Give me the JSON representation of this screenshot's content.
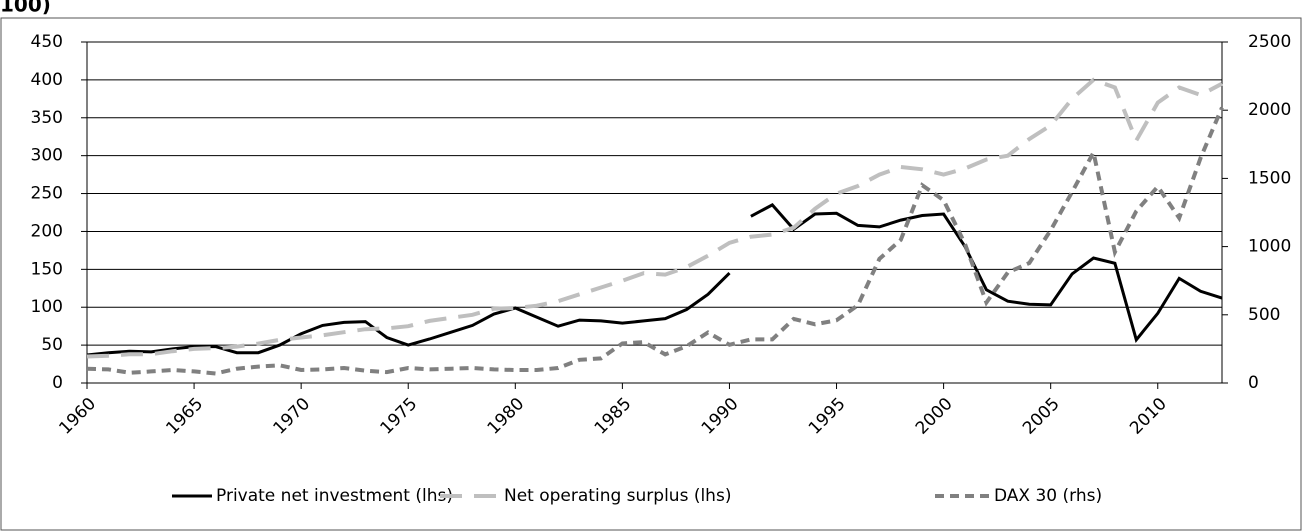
{
  "chart_data": {
    "type": "line",
    "title": "100)",
    "x": [
      1960,
      1961,
      1962,
      1963,
      1964,
      1965,
      1966,
      1967,
      1968,
      1969,
      1970,
      1971,
      1972,
      1973,
      1974,
      1975,
      1976,
      1977,
      1978,
      1979,
      1980,
      1981,
      1982,
      1983,
      1984,
      1985,
      1986,
      1987,
      1988,
      1989,
      1990,
      1991,
      1992,
      1993,
      1994,
      1995,
      1996,
      1997,
      1998,
      1999,
      2000,
      2001,
      2002,
      2003,
      2004,
      2005,
      2006,
      2007,
      2008,
      2009,
      2010,
      2011,
      2012,
      2013
    ],
    "series": [
      {
        "name": "Private net investment (lhs)",
        "color": "#000000",
        "dash": "none",
        "x": [
          1960,
          1961,
          1962,
          1963,
          1964,
          1965,
          1966,
          1967,
          1968,
          1969,
          1970,
          1971,
          1972,
          1973,
          1974,
          1975,
          1976,
          1977,
          1978,
          1979,
          1980,
          1981,
          1982,
          1983,
          1984,
          1985,
          1986,
          1987,
          1988,
          1989,
          1990,
          null,
          1991,
          1992,
          1993,
          1994,
          1995,
          1996,
          1997,
          1998,
          1999,
          2000,
          2001,
          2002,
          2003,
          2004,
          2005,
          2006,
          2007,
          2008,
          2009,
          2010,
          2011,
          2012,
          2013
        ],
        "values": [
          37,
          40,
          42,
          41,
          45,
          48,
          48,
          40,
          40,
          50,
          65,
          76,
          80,
          81,
          60,
          50,
          58,
          67,
          76,
          91,
          99,
          87,
          75,
          83,
          82,
          79,
          82,
          85,
          97,
          117,
          145,
          null,
          220,
          235,
          203,
          223,
          224,
          208,
          206,
          215,
          221,
          223,
          180,
          123,
          108,
          104,
          103,
          144,
          165,
          158,
          57,
          92,
          138,
          121,
          112
        ]
      },
      {
        "name": "Net operating surplus (lhs)",
        "color": "#bfbfbf",
        "dash": "22 12",
        "values": [
          35,
          36,
          38,
          38,
          42,
          45,
          46,
          48,
          52,
          57,
          60,
          63,
          67,
          71,
          72,
          75,
          82,
          86,
          90,
          98,
          99,
          102,
          108,
          117,
          126,
          135,
          145,
          143,
          153,
          168,
          185,
          193,
          196,
          205,
          230,
          250,
          260,
          275,
          285,
          282,
          275,
          283,
          295,
          300,
          322,
          340,
          375,
          400,
          390,
          320,
          370,
          390,
          380,
          395
        ]
      },
      {
        "name": "DAX 30 (rhs)",
        "color": "#808080",
        "dash": "9 6",
        "axis": "y2",
        "values": [
          105,
          100,
          75,
          85,
          95,
          85,
          70,
          105,
          120,
          130,
          95,
          100,
          110,
          90,
          80,
          110,
          100,
          105,
          110,
          100,
          95,
          95,
          110,
          170,
          180,
          290,
          300,
          210,
          270,
          370,
          280,
          320,
          320,
          470,
          430,
          460,
          570,
          910,
          1050,
          1450,
          1340,
          1020,
          590,
          810,
          880,
          1120,
          1400,
          1690,
          960,
          1260,
          1440,
          1210,
          1650,
          2020
        ]
      }
    ],
    "xlim": [
      1960,
      2013
    ],
    "xticks": [
      1960,
      1965,
      1970,
      1975,
      1980,
      1985,
      1990,
      1995,
      2000,
      2005,
      2010
    ],
    "ylim": [
      0,
      450
    ],
    "yticks": [
      0,
      50,
      100,
      150,
      200,
      250,
      300,
      350,
      400,
      450
    ],
    "y2lim": [
      0,
      2500
    ],
    "y2ticks": [
      0,
      500,
      1000,
      1500,
      2000,
      2500
    ],
    "grid": true,
    "legend": "bottom"
  }
}
